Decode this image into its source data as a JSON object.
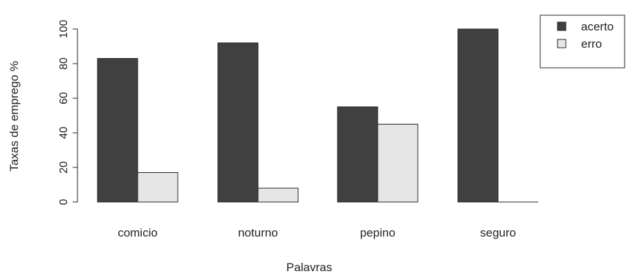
{
  "chart_data": {
    "type": "bar",
    "categories": [
      "comicio",
      "noturno",
      "pepino",
      "seguro"
    ],
    "series": [
      {
        "name": "acerto",
        "values": [
          83,
          92,
          55,
          100
        ]
      },
      {
        "name": "erro",
        "values": [
          17,
          8,
          45,
          0
        ]
      }
    ],
    "xlabel": "Palavras",
    "ylabel": "Taxas de emprego %",
    "ylim": [
      0,
      100
    ],
    "yticks": [
      0,
      20,
      40,
      60,
      80,
      100
    ],
    "grid": false,
    "legend_position": "top-right",
    "colors": {
      "acerto": "#404040",
      "erro": "#e6e6e6",
      "outline": "#222222"
    }
  }
}
